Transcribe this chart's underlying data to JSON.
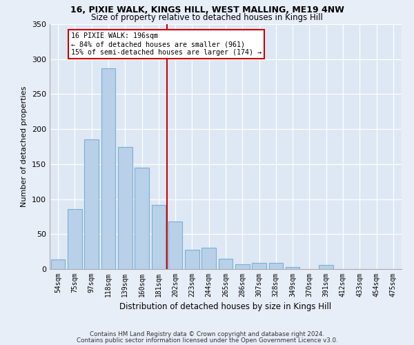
{
  "title1": "16, PIXIE WALK, KINGS HILL, WEST MALLING, ME19 4NW",
  "title2": "Size of property relative to detached houses in Kings Hill",
  "xlabel": "Distribution of detached houses by size in Kings Hill",
  "ylabel": "Number of detached properties",
  "categories": [
    "54sqm",
    "75sqm",
    "97sqm",
    "118sqm",
    "139sqm",
    "160sqm",
    "181sqm",
    "202sqm",
    "223sqm",
    "244sqm",
    "265sqm",
    "286sqm",
    "307sqm",
    "328sqm",
    "349sqm",
    "370sqm",
    "391sqm",
    "412sqm",
    "433sqm",
    "454sqm",
    "475sqm"
  ],
  "values": [
    14,
    86,
    185,
    287,
    175,
    145,
    92,
    68,
    28,
    31,
    15,
    7,
    9,
    9,
    3,
    0,
    6,
    0,
    0,
    0,
    0
  ],
  "bar_color": "#b8d0e8",
  "bar_edge_color": "#7aafd4",
  "vline_pos": 6.5,
  "vline_color": "#cc0000",
  "annotation_line1": "16 PIXIE WALK: 196sqm",
  "annotation_line2": "← 84% of detached houses are smaller (961)",
  "annotation_line3": "15% of semi-detached houses are larger (174) →",
  "annotation_box_edgecolor": "#cc0000",
  "annotation_bg": "#ffffff",
  "footer1": "Contains HM Land Registry data © Crown copyright and database right 2024.",
  "footer2": "Contains public sector information licensed under the Open Government Licence v3.0.",
  "fig_bg_color": "#e8eef8",
  "plot_bg_color": "#dde8f4",
  "ylim": [
    0,
    350
  ],
  "yticks": [
    0,
    50,
    100,
    150,
    200,
    250,
    300,
    350
  ]
}
